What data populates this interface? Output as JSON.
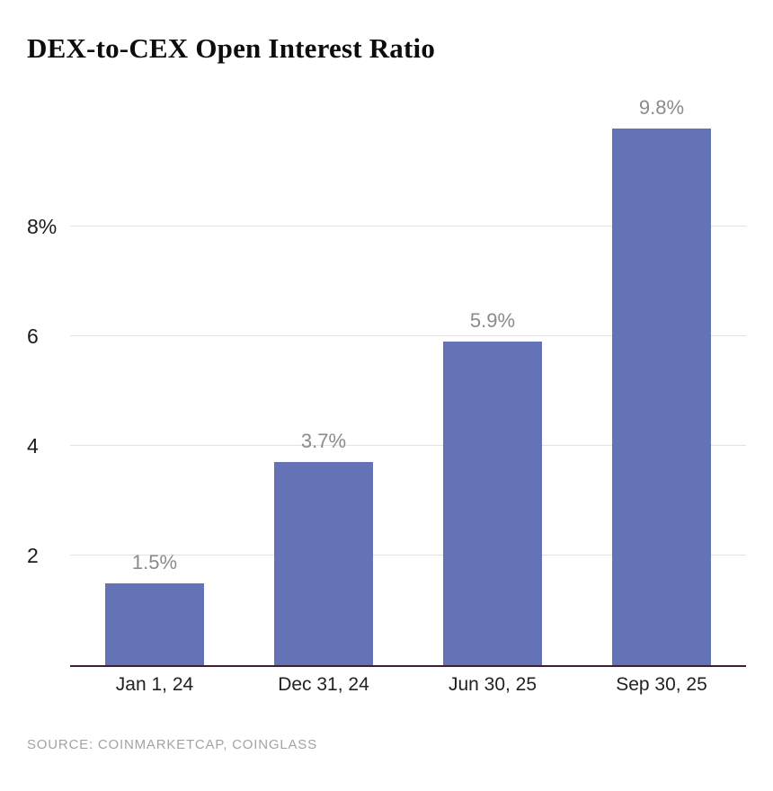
{
  "title": "DEX-to-CEX Open Interest Ratio",
  "source": "SOURCE: COINMARKETCAP, COINGLASS",
  "colors": {
    "bar": "#6373b6",
    "value_label": "#8b8b8b",
    "grid": "#e2e2e2",
    "baseline": "#3d1f3a",
    "source_text": "#a3a3a3"
  },
  "chart_data": {
    "type": "bar",
    "title": "DEX-to-CEX Open Interest Ratio",
    "categories": [
      "Jan 1, 24",
      "Dec 31, 24",
      "Jun 30, 25",
      "Sep 30, 25"
    ],
    "values": [
      1.5,
      3.7,
      5.9,
      9.8
    ],
    "value_labels": [
      "1.5%",
      "3.7%",
      "5.9%",
      "9.8%"
    ],
    "xlabel": "",
    "ylabel": "",
    "ylim": [
      0,
      10.5
    ],
    "yticks": [
      {
        "value": 2,
        "label": "2"
      },
      {
        "value": 4,
        "label": "4"
      },
      {
        "value": 6,
        "label": "6"
      },
      {
        "value": 8,
        "label": "8%"
      }
    ],
    "grid": true,
    "legend": false
  }
}
